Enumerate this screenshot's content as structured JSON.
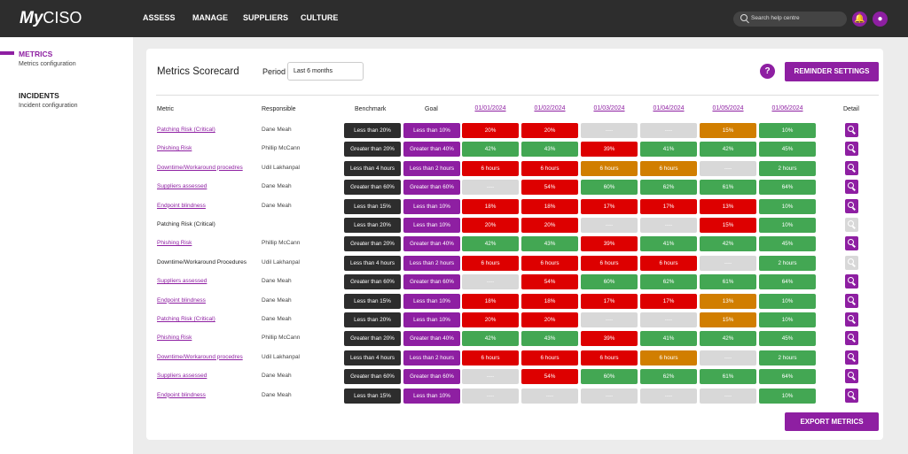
{
  "header": {
    "logo": "MyCISO",
    "nav": [
      "ASSESS",
      "MANAGE",
      "SUPPLIERS",
      "CULTURE"
    ],
    "search_placeholder": "Search help centre"
  },
  "sidebar": {
    "items": [
      {
        "label": "METRICS",
        "sub": "Metrics configuration",
        "active": true
      },
      {
        "label": "INCIDENTS",
        "sub": "Incident configuration",
        "active": false
      }
    ]
  },
  "card": {
    "title": "Metrics Scorecard",
    "period_label": "Period",
    "period_value": "Last 6 months",
    "help": "?",
    "reminder_button": "REMINDER SETTINGS",
    "export_button": "EXPORT METRICS"
  },
  "colors": {
    "accent": "#8e1fa2",
    "red": "#dd0000",
    "green": "#43a753",
    "amber": "#d17e00",
    "empty": "#d8d8d8",
    "dark": "#2d2d2d"
  },
  "table": {
    "headers": {
      "metric": "Metric",
      "responsible": "Responsible",
      "benchmark": "Benchmark",
      "goal": "Goal",
      "detail": "Detail",
      "dates": [
        "01/01/2024",
        "01/02/2024",
        "01/03/2024",
        "01/04/2024",
        "01/05/2024",
        "01/06/2024"
      ]
    },
    "rows": [
      {
        "metric": "Patching Risk (Critical)",
        "link": true,
        "responsible": "Dane Meah",
        "benchmark": "Less than 20%",
        "goal": "Less than 10%",
        "values": [
          [
            "20%",
            "red"
          ],
          [
            "20%",
            "red"
          ],
          [
            "----",
            "empty"
          ],
          [
            "----",
            "empty"
          ],
          [
            "15%",
            "amber"
          ],
          [
            "10%",
            "green"
          ]
        ],
        "detail": true
      },
      {
        "metric": "Phishing Risk",
        "link": true,
        "responsible": "Phillip McCann",
        "benchmark": "Greater than 20%",
        "goal": "Greater than 40%",
        "values": [
          [
            "42%",
            "green"
          ],
          [
            "43%",
            "green"
          ],
          [
            "39%",
            "red"
          ],
          [
            "41%",
            "green"
          ],
          [
            "42%",
            "green"
          ],
          [
            "45%",
            "green"
          ]
        ],
        "detail": true
      },
      {
        "metric": "Downtime/Workaround procedres",
        "link": true,
        "responsible": "Udil Lakhanpal",
        "benchmark": "Less than 4 hours",
        "goal": "Less than 2 hours",
        "values": [
          [
            "6 hours",
            "red"
          ],
          [
            "6 hours",
            "red"
          ],
          [
            "6 hours",
            "amber"
          ],
          [
            "6 hours",
            "amber"
          ],
          [
            "----",
            "empty"
          ],
          [
            "2 hours",
            "green"
          ]
        ],
        "detail": true
      },
      {
        "metric": "Suppliers assessed",
        "link": true,
        "responsible": "Dane Meah",
        "benchmark": "Greater than 60%",
        "goal": "Greater than 60%",
        "values": [
          [
            "----",
            "empty"
          ],
          [
            "54%",
            "red"
          ],
          [
            "60%",
            "green"
          ],
          [
            "62%",
            "green"
          ],
          [
            "61%",
            "green"
          ],
          [
            "64%",
            "green"
          ]
        ],
        "detail": true
      },
      {
        "metric": "Endpoint blindness",
        "link": true,
        "responsible": "Dane Meah",
        "benchmark": "Less than 15%",
        "goal": "Less than 10%",
        "values": [
          [
            "18%",
            "red"
          ],
          [
            "18%",
            "red"
          ],
          [
            "17%",
            "red"
          ],
          [
            "17%",
            "red"
          ],
          [
            "13%",
            "red"
          ],
          [
            "10%",
            "green"
          ]
        ],
        "detail": true
      },
      {
        "metric": "Patching Risk (Critical)",
        "link": false,
        "responsible": "",
        "benchmark": "Less than 20%",
        "goal": "Less than 10%",
        "values": [
          [
            "20%",
            "red"
          ],
          [
            "20%",
            "red"
          ],
          [
            "----",
            "empty"
          ],
          [
            "----",
            "empty"
          ],
          [
            "15%",
            "red"
          ],
          [
            "10%",
            "green"
          ]
        ],
        "detail": false
      },
      {
        "metric": "Phishing Risk",
        "link": true,
        "responsible": "Phillip McCann",
        "benchmark": "Greater than 20%",
        "goal": "Greater than 40%",
        "values": [
          [
            "42%",
            "green"
          ],
          [
            "43%",
            "green"
          ],
          [
            "39%",
            "red"
          ],
          [
            "41%",
            "green"
          ],
          [
            "42%",
            "green"
          ],
          [
            "45%",
            "green"
          ]
        ],
        "detail": true
      },
      {
        "metric": "Downtime/Workaround Procedures",
        "link": false,
        "responsible": "Udil Lakhanpal",
        "benchmark": "Less than 4 hours",
        "goal": "Less than 2 hours",
        "values": [
          [
            "6 hours",
            "red"
          ],
          [
            "6 hours",
            "red"
          ],
          [
            "6 hours",
            "red"
          ],
          [
            "6 hours",
            "red"
          ],
          [
            "----",
            "empty"
          ],
          [
            "2 hours",
            "green"
          ]
        ],
        "detail": false
      },
      {
        "metric": "Suppliers assessed",
        "link": true,
        "responsible": "Dane Meah",
        "benchmark": "Greater than 60%",
        "goal": "Greater than 60%",
        "values": [
          [
            "----",
            "empty"
          ],
          [
            "54%",
            "red"
          ],
          [
            "60%",
            "green"
          ],
          [
            "62%",
            "green"
          ],
          [
            "61%",
            "green"
          ],
          [
            "64%",
            "green"
          ]
        ],
        "detail": true
      },
      {
        "metric": "Endpoint blindness",
        "link": true,
        "responsible": "Dane Meah",
        "benchmark": "Less than 15%",
        "goal": "Less than 10%",
        "values": [
          [
            "18%",
            "red"
          ],
          [
            "18%",
            "red"
          ],
          [
            "17%",
            "red"
          ],
          [
            "17%",
            "red"
          ],
          [
            "13%",
            "amber"
          ],
          [
            "10%",
            "green"
          ]
        ],
        "detail": true
      },
      {
        "metric": "Patching Risk (Critical)",
        "link": true,
        "responsible": "Dane Meah",
        "benchmark": "Less than 20%",
        "goal": "Less than 10%",
        "values": [
          [
            "20%",
            "red"
          ],
          [
            "20%",
            "red"
          ],
          [
            "----",
            "empty"
          ],
          [
            "----",
            "empty"
          ],
          [
            "15%",
            "amber"
          ],
          [
            "10%",
            "green"
          ]
        ],
        "detail": true
      },
      {
        "metric": "Phishing Risk",
        "link": true,
        "responsible": "Phillip McCann",
        "benchmark": "Greater than 20%",
        "goal": "Greater than 40%",
        "values": [
          [
            "42%",
            "green"
          ],
          [
            "43%",
            "green"
          ],
          [
            "39%",
            "red"
          ],
          [
            "41%",
            "green"
          ],
          [
            "42%",
            "green"
          ],
          [
            "45%",
            "green"
          ]
        ],
        "detail": true
      },
      {
        "metric": "Downtime/Workaround procedres",
        "link": true,
        "responsible": "Udil Lakhanpal",
        "benchmark": "Less than 4 hours",
        "goal": "Less than 2 hours",
        "values": [
          [
            "6 hours",
            "red"
          ],
          [
            "6 hours",
            "red"
          ],
          [
            "6 hours",
            "red"
          ],
          [
            "6 hours",
            "amber"
          ],
          [
            "----",
            "empty"
          ],
          [
            "2 hours",
            "green"
          ]
        ],
        "detail": true
      },
      {
        "metric": "Suppliers assessed",
        "link": true,
        "responsible": "Dane Meah",
        "benchmark": "Greater than 60%",
        "goal": "Greater than 60%",
        "values": [
          [
            "----",
            "empty"
          ],
          [
            "54%",
            "red"
          ],
          [
            "60%",
            "green"
          ],
          [
            "62%",
            "green"
          ],
          [
            "61%",
            "green"
          ],
          [
            "64%",
            "green"
          ]
        ],
        "detail": true
      },
      {
        "metric": "Endpoint blindness",
        "link": true,
        "responsible": "Dane Meah",
        "benchmark": "Less than 15%",
        "goal": "Less than 10%",
        "values": [
          [
            "----",
            "empty"
          ],
          [
            "----",
            "empty"
          ],
          [
            "----",
            "empty"
          ],
          [
            "----",
            "empty"
          ],
          [
            "----",
            "empty"
          ],
          [
            "10%",
            "green"
          ]
        ],
        "detail": true
      }
    ]
  }
}
